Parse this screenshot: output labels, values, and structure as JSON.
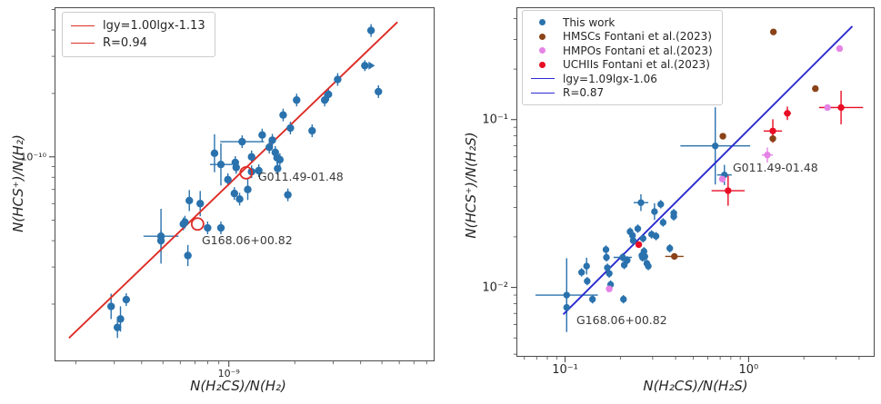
{
  "chart_data": [
    {
      "id": "left-panel",
      "type": "scatter",
      "xlabel": "N(H₂CS)/N(H₂)",
      "ylabel": "N(HCS⁺)/N(H₂)",
      "xscale": "log",
      "yscale": "log",
      "xlim": [
        1.6e-10,
        8.7e-09
      ],
      "ylim": [
        1.07e-11,
        5.13e-10
      ],
      "grid": false,
      "x_ticks": [
        {
          "value": 1e-09,
          "label": "10⁻⁹"
        }
      ],
      "y_ticks": [
        {
          "value": 1e-10,
          "label": "10⁻¹⁰"
        }
      ],
      "legend_position": "upper left",
      "legend": [
        {
          "label": "lgy=1.00lgx-1.13",
          "marker": "line",
          "color": "#dd2c26"
        },
        {
          "label": "R=0.94",
          "marker": "line",
          "color": "#dd2c26"
        }
      ],
      "fit": {
        "equation": "lgy=1.00lgx-1.13",
        "slope": 1.0,
        "intercept": -1.13,
        "R": 0.94,
        "color": "#dd2c26",
        "lgx_range": [
          -9.73,
          -8.23
        ]
      },
      "point_format": [
        "x",
        "y",
        "ey_dex",
        "ex_dex"
      ],
      "series": [
        {
          "name": "sources",
          "marker": "circle",
          "color": "#2a72ad",
          "default_ey_dex": 0.03,
          "points": [
            [
              4.46e-09,
              3.98e-10
            ],
            [
              3.14e-09,
              2.33e-10
            ],
            [
              4.82e-09,
              2.04e-10
            ],
            [
              2.85e-09,
              1.98e-10
            ],
            [
              2.74e-09,
              1.86e-10
            ],
            [
              2.04e-09,
              1.86e-10
            ],
            [
              1.77e-09,
              1.58e-10
            ],
            [
              1.91e-09,
              1.37e-10
            ],
            [
              2.4e-09,
              1.33e-10
            ],
            [
              1.58e-09,
              1.2e-10
            ],
            [
              1.63e-09,
              1.05e-10
            ],
            [
              1.71e-09,
              9.7e-11
            ],
            [
              1.42e-09,
              1.27e-10
            ],
            [
              1.15e-09,
              1.18e-10,
              0.03,
              0.1
            ],
            [
              1.53e-09,
              1.11e-10
            ],
            [
              8.6e-10,
              1.04e-10,
              0.09
            ],
            [
              9.2e-10,
              9.2e-11,
              0.1,
              0.05
            ],
            [
              1.07e-09,
              9.4e-11
            ],
            [
              1.08e-09,
              8.9e-11
            ],
            [
              1.27e-09,
              1e-10
            ],
            [
              1.27e-09,
              8.5e-11
            ],
            [
              1.37e-09,
              8.6e-11
            ],
            [
              1.66e-09,
              9.9e-11
            ],
            [
              1.67e-09,
              8.8e-11
            ],
            [
              9.9e-10,
              7.8e-11
            ],
            [
              1.06e-09,
              6.7e-11
            ],
            [
              1.22e-09,
              7e-11,
              0.05
            ],
            [
              1.12e-09,
              6.3e-11
            ],
            [
              1.86e-09,
              6.6e-11
            ],
            [
              6.6e-10,
              6.2e-11,
              0.05
            ],
            [
              7.4e-10,
              6e-11,
              0.06
            ],
            [
              4.9e-10,
              4.2e-11,
              0.13,
              0.08
            ],
            [
              4.9e-10,
              4e-11,
              0.05
            ],
            [
              6.2e-10,
              4.8e-11
            ],
            [
              6.3e-10,
              4.9e-11
            ],
            [
              8e-10,
              4.6e-11
            ],
            [
              9.2e-10,
              4.6e-11
            ],
            [
              6.5e-10,
              3.4e-11,
              0.05
            ],
            [
              2.9e-10,
              1.95e-11,
              0.06
            ],
            [
              3.4e-10,
              2.1e-11
            ],
            [
              3.2e-10,
              1.7e-11,
              0.06
            ],
            [
              3.1e-10,
              1.55e-11,
              0.05
            ]
          ]
        }
      ],
      "upper_limit_points": [
        {
          "x": 4.18e-09,
          "y": 2.71e-10,
          "direction": "right"
        }
      ],
      "annotations": [
        {
          "label": "G011.49-01.48",
          "x": 1.2e-09,
          "y": 8.4e-11,
          "ring": true,
          "ring_color": "#dd2c26"
        },
        {
          "label": "G168.06+00.82",
          "x": 7.2e-10,
          "y": 4.8e-11,
          "ring": true,
          "ring_color": "#dd2c26"
        }
      ]
    },
    {
      "id": "right-panel",
      "type": "scatter",
      "xlabel": "N(H₂CS)/N(H₂S)",
      "ylabel": "N(HCS⁺)/N(H₂S)",
      "xscale": "log",
      "yscale": "log",
      "xlim": [
        0.0543,
        4.86
      ],
      "ylim": [
        0.00386,
        0.467
      ],
      "grid": false,
      "x_ticks": [
        {
          "value": 0.1,
          "label": "10⁻¹"
        },
        {
          "value": 1,
          "label": "10⁰"
        }
      ],
      "y_ticks": [
        {
          "value": 0.1,
          "label": "10⁻¹"
        },
        {
          "value": 0.01,
          "label": "10⁻²"
        }
      ],
      "legend_position": "upper left",
      "legend": [
        {
          "label": "This work",
          "marker": "dot",
          "color": "#2a72ad"
        },
        {
          "label": "HMSCs Fontani et al.(2023)",
          "marker": "dot",
          "color": "#8a4318"
        },
        {
          "label": "HMPOs Fontani et al.(2023)",
          "marker": "dot",
          "color": "#e583e5"
        },
        {
          "label": "UCHIIs Fontani et al.(2023)",
          "marker": "dot",
          "color": "#e80d24"
        },
        {
          "label": "lgy=1.09lgx-1.06",
          "marker": "line",
          "color": "#2b2bcf"
        },
        {
          "label": "R=0.87",
          "marker": "line",
          "color": "#2b2bcf"
        }
      ],
      "fit": {
        "equation": "lgy=1.09lgx-1.06",
        "slope": 1.09,
        "intercept": -1.06,
        "R": 0.87,
        "color": "#2b2bcf",
        "lgx_range": [
          -1.01,
          0.565
        ]
      },
      "point_format": [
        "x",
        "y",
        "ey_dex",
        "ex_dex"
      ],
      "series": [
        {
          "name": "This work",
          "marker": "circle",
          "color": "#2a72ad",
          "default_ey_dex": 0.025,
          "points": [
            [
              0.102,
              0.009,
              0.22,
              0.17
            ],
            [
              0.102,
              0.0076,
              0.05
            ],
            [
              0.123,
              0.0123
            ],
            [
              0.131,
              0.0134,
              0.05
            ],
            [
              0.132,
              0.0109
            ],
            [
              0.141,
              0.0085
            ],
            [
              0.167,
              0.0168
            ],
            [
              0.168,
              0.0151
            ],
            [
              0.17,
              0.0131
            ],
            [
              0.174,
              0.0121
            ],
            [
              0.177,
              0.0104
            ],
            [
              0.206,
              0.0151,
              0.025,
              0.05
            ],
            [
              0.21,
              0.0136
            ],
            [
              0.208,
              0.0085
            ],
            [
              0.226,
              0.0215
            ],
            [
              0.235,
              0.019
            ],
            [
              0.262,
              0.0155
            ],
            [
              0.272,
              0.0153,
              0.05
            ],
            [
              0.284,
              0.0134
            ],
            [
              0.296,
              0.0207
            ],
            [
              0.313,
              0.0202
            ],
            [
              0.372,
              0.0171
            ],
            [
              0.259,
              0.032,
              0.05,
              0.04
            ],
            [
              0.307,
              0.0283,
              0.05
            ],
            [
              0.332,
              0.0313
            ],
            [
              0.391,
              0.0277
            ],
            [
              0.391,
              0.0265
            ],
            [
              0.342,
              0.0244
            ],
            [
              0.249,
              0.0224
            ],
            [
              0.233,
              0.0204
            ],
            [
              0.266,
              0.0196
            ],
            [
              0.218,
              0.0145
            ],
            [
              0.269,
              0.0164
            ],
            [
              0.264,
              0.0151
            ],
            [
              0.279,
              0.0139
            ],
            [
              0.658,
              0.0697,
              0.23,
              0.19
            ],
            [
              0.738,
              0.0468,
              0.06,
              0.04
            ]
          ]
        },
        {
          "name": "HMSCs Fontani et al.(2023)",
          "marker": "circle",
          "color": "#8a4318",
          "default_ey_dex": 0,
          "points": [
            [
              0.394,
              0.0153,
              0,
              0.05
            ],
            [
              0.724,
              0.0796
            ],
            [
              1.355,
              0.077
            ],
            [
              2.31,
              0.153
            ],
            [
              1.365,
              0.333
            ]
          ]
        },
        {
          "name": "HMPOs Fontani et al.(2023)",
          "marker": "circle",
          "color": "#e583e5",
          "default_ey_dex": 0,
          "points": [
            [
              0.174,
              0.0098
            ],
            [
              0.719,
              0.0442
            ],
            [
              1.265,
              0.0615,
              0.045,
              0.03
            ],
            [
              2.69,
              0.118,
              0,
              0.04
            ],
            [
              3.13,
              0.265
            ]
          ]
        },
        {
          "name": "UCHIIs Fontani et al.(2023)",
          "marker": "circle",
          "color": "#e80d24",
          "default_ey_dex": 0,
          "points": [
            [
              0.252,
              0.018
            ],
            [
              0.773,
              0.0377,
              0.09,
              0.09
            ],
            [
              1.355,
              0.0855,
              0.07,
              0.05
            ],
            [
              1.626,
              0.109,
              0.04,
              0.02
            ],
            [
              3.19,
              0.118,
              0.1,
              0.12
            ]
          ]
        }
      ],
      "upper_limit_points": [],
      "annotations": [
        {
          "label": "G011.49-01.48",
          "x": 0.738,
          "y": 0.0468,
          "ring": false
        },
        {
          "label": "G168.06+00.82",
          "x": 0.102,
          "y": 0.009,
          "ring": false
        }
      ]
    }
  ]
}
